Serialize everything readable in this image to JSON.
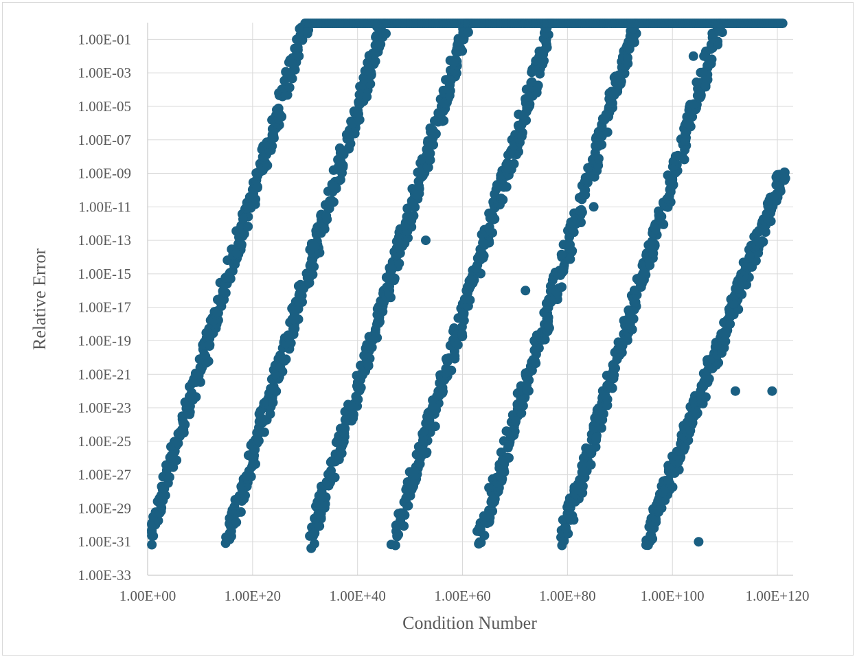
{
  "chart_data": {
    "type": "scatter",
    "title": "",
    "xlabel": "Condition Number",
    "ylabel": "Relative Error",
    "x_scale": "log10",
    "y_scale": "log10",
    "xlim": [
      "1.00E+00",
      "1.00E+123"
    ],
    "ylim": [
      "1.00E-33",
      "1.00E+00"
    ],
    "x_tick_labels": [
      "1.00E+00",
      "1.00E+20",
      "1.00E+40",
      "1.00E+60",
      "1.00E+80",
      "1.00E+100",
      "1.00E+120"
    ],
    "y_tick_labels": [
      "1.00E-01",
      "1.00E-03",
      "1.00E-05",
      "1.00E-07",
      "1.00E-09",
      "1.00E-11",
      "1.00E-13",
      "1.00E-15",
      "1.00E-17",
      "1.00E-19",
      "1.00E-21",
      "1.00E-23",
      "1.00E-25",
      "1.00E-27",
      "1.00E-29",
      "1.00E-31",
      "1.00E-33"
    ],
    "grid": true,
    "legend": "none",
    "marker_color": "#1a5f82",
    "series": [
      {
        "precision_bands_log10": [
          {
            "x": [
              0,
              30
            ],
            "y": [
              -31,
              0
            ]
          },
          {
            "x": [
              15,
              45
            ],
            "y": [
              -31,
              0
            ]
          },
          {
            "x": [
              31,
              61
            ],
            "y": [
              -31,
              0
            ]
          },
          {
            "x": [
              47,
              77
            ],
            "y": [
              -31,
              0
            ]
          },
          {
            "x": [
              63,
              93
            ],
            "y": [
              -31,
              0
            ]
          },
          {
            "x": [
              79,
              109
            ],
            "y": [
              -31,
              0
            ]
          },
          {
            "x": [
              95,
              121
            ],
            "y": [
              -31,
              -9
            ]
          }
        ],
        "saturated_log10": {
          "x": [
            30,
            121
          ],
          "y": 0
        },
        "outliers_log10": [
          {
            "x": 104,
            "y": -2
          },
          {
            "x": 106,
            "y": -2
          },
          {
            "x": 85,
            "y": -11
          },
          {
            "x": 53,
            "y": -13
          },
          {
            "x": 72,
            "y": -16
          },
          {
            "x": 110,
            "y": -19
          },
          {
            "x": 112,
            "y": -22
          },
          {
            "x": 119,
            "y": -22
          },
          {
            "x": 105,
            "y": -31
          }
        ]
      }
    ]
  }
}
